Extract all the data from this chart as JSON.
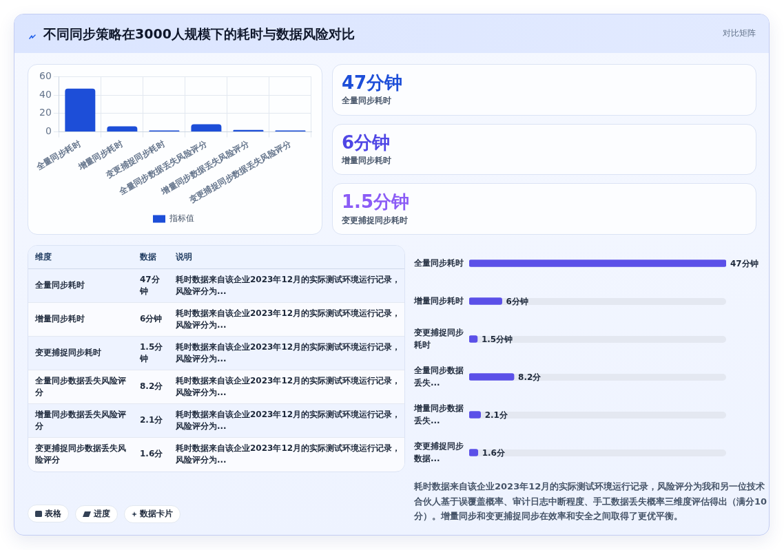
{
  "chart_data": [
    {
      "type": "other",
      "title": "不同同步策略在3000人规模下的耗时与数据风险对比",
      "subtitle": "对比矩阵"
    },
    {
      "type": "bar",
      "categories": [
        "全量同步耗时",
        "增量同步耗时",
        "变更捕捉同步耗时",
        "全量同步数据丢失风险评分",
        "增量同步数据丢失风险评分",
        "变更捕捉同步数据丢失风险评分"
      ],
      "series": [
        {
          "name": "指标值",
          "color": "#1d4ed8",
          "values": [
            47,
            6,
            1.5,
            8.2,
            2.1,
            1.6
          ]
        }
      ],
      "ylim": [
        0,
        60
      ],
      "yticks": [
        0,
        20,
        40,
        60
      ],
      "grid": true,
      "legend": "bottom"
    },
    {
      "type": "other",
      "categories": [
        "全量同步耗时",
        "增量同步耗时",
        "变更捕捉同步耗时"
      ],
      "value_labels": [
        "47分钟",
        "6分钟",
        "1.5分钟"
      ]
    },
    {
      "type": "other",
      "categories": [
        "维度",
        "数据",
        "说明"
      ],
      "cell_labels": [
        [
          "全量同步耗时",
          "47分钟",
          "耗时数据来自该企业2023年12月的实际测试环境运行记录，风险评分为..."
        ],
        [
          "增量同步耗时",
          "6分钟",
          "耗时数据来自该企业2023年12月的实际测试环境运行记录，风险评分为..."
        ],
        [
          "变更捕捉同步耗时",
          "1.5分钟",
          "耗时数据来自该企业2023年12月的实际测试环境运行记录，风险评分为..."
        ],
        [
          "全量同步数据丢失风险评分",
          "8.2分",
          "耗时数据来自该企业2023年12月的实际测试环境运行记录，风险评分为..."
        ],
        [
          "增量同步数据丢失风险评分",
          "2.1分",
          "耗时数据来自该企业2023年12月的实际测试环境运行记录，风险评分为..."
        ],
        [
          "变更捕捉同步数据丢失风险评分",
          "1.6分",
          "耗时数据来自该企业2023年12月的实际测试环境运行记录，风险评分为..."
        ]
      ]
    },
    {
      "type": "bar",
      "orientation": "horizontal",
      "categories": [
        "全量同步耗时",
        "增量同步耗时",
        "变更捕捉同步耗时",
        "全量同步数据丢失...",
        "增量同步数据丢失...",
        "变更捕捉同步数据..."
      ],
      "values": [
        47,
        6,
        1.5,
        8.2,
        2.1,
        1.6
      ],
      "value_labels": [
        "47分钟",
        "6分钟",
        "1.5分钟",
        "8.2分",
        "2.1分",
        "1.6分"
      ],
      "color": "#5b50e8",
      "annotations": [
        "耗时数据来自该企业2023年12月的实际测试环境运行记录，风险评分为我和另一位技术合伙人基于误覆盖概率、审计日志中断程度、手工数据丢失概率三维度评估得出（满分10分）。增量同步和变更捕捉同步在效率和安全之间取得了更优平衡。"
      ]
    },
    {
      "type": "other",
      "annotations": [
        "表格",
        "进度",
        "数据卡片"
      ]
    }
  ]
}
